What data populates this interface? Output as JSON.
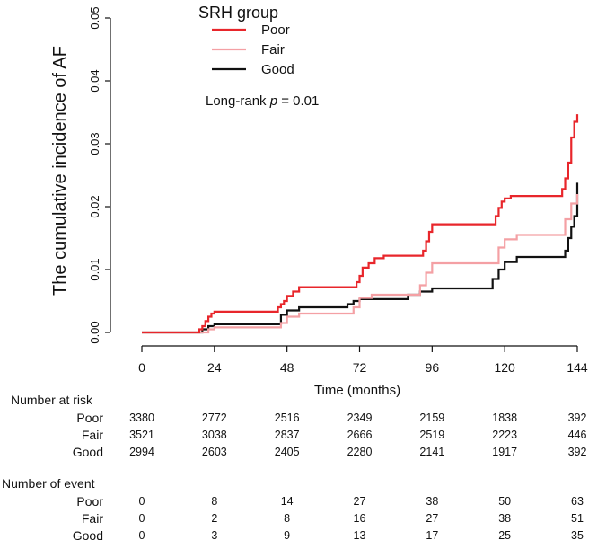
{
  "chart_data": {
    "type": "line",
    "step": true,
    "ylabel": "The cumulative incidence of AF",
    "xlabel": "Time (months)",
    "xlim": [
      0,
      144
    ],
    "ylim": [
      0,
      0.05
    ],
    "x_ticks": [
      0,
      24,
      48,
      72,
      96,
      120,
      144
    ],
    "x_tick_labels": [
      "0",
      "24",
      "48",
      "72",
      "96",
      "120",
      "144"
    ],
    "y_ticks": [
      0,
      0.01,
      0.02,
      0.03,
      0.04,
      0.05
    ],
    "y_tick_labels": [
      "0.00",
      "0.01",
      "0.02",
      "0.03",
      "0.04",
      "0.05"
    ],
    "grid": false,
    "legend": {
      "title": "SRH group",
      "placement": "top-center",
      "entries": [
        "Poor",
        "Fair",
        "Good"
      ]
    },
    "annotation": {
      "prefix": "Long-rank ",
      "italic": "p",
      "suffix": " = 0.01"
    },
    "series": [
      {
        "name": "Poor",
        "color": "#e8262b",
        "points": [
          [
            0,
            0
          ],
          [
            18,
            0
          ],
          [
            19,
            0.0005
          ],
          [
            20,
            0.001
          ],
          [
            21,
            0.0018
          ],
          [
            22,
            0.0025
          ],
          [
            23,
            0.003
          ],
          [
            24,
            0.0033
          ],
          [
            44,
            0.0033
          ],
          [
            45,
            0.004
          ],
          [
            46,
            0.0045
          ],
          [
            47,
            0.005
          ],
          [
            48,
            0.0058
          ],
          [
            50,
            0.0065
          ],
          [
            52,
            0.0072
          ],
          [
            70,
            0.0072
          ],
          [
            71,
            0.008
          ],
          [
            72,
            0.009
          ],
          [
            73,
            0.0103
          ],
          [
            75,
            0.011
          ],
          [
            77,
            0.0118
          ],
          [
            80,
            0.0122
          ],
          [
            92,
            0.0122
          ],
          [
            93,
            0.013
          ],
          [
            94,
            0.0145
          ],
          [
            95,
            0.016
          ],
          [
            96,
            0.0172
          ],
          [
            116,
            0.0172
          ],
          [
            117,
            0.0185
          ],
          [
            118,
            0.0198
          ],
          [
            119,
            0.0208
          ],
          [
            120,
            0.0213
          ],
          [
            122,
            0.0217
          ],
          [
            138,
            0.0217
          ],
          [
            139,
            0.0228
          ],
          [
            140,
            0.0245
          ],
          [
            141,
            0.027
          ],
          [
            142,
            0.031
          ],
          [
            143,
            0.0335
          ],
          [
            144,
            0.0347
          ]
        ]
      },
      {
        "name": "Fair",
        "color": "#f4a0a4",
        "points": [
          [
            0,
            0
          ],
          [
            20,
            0
          ],
          [
            22,
            0.0005
          ],
          [
            24,
            0.0008
          ],
          [
            44,
            0.0008
          ],
          [
            46,
            0.0015
          ],
          [
            48,
            0.0025
          ],
          [
            52,
            0.003
          ],
          [
            68,
            0.003
          ],
          [
            70,
            0.004
          ],
          [
            72,
            0.0055
          ],
          [
            76,
            0.006
          ],
          [
            90,
            0.006
          ],
          [
            92,
            0.0075
          ],
          [
            94,
            0.0095
          ],
          [
            96,
            0.011
          ],
          [
            116,
            0.011
          ],
          [
            118,
            0.0135
          ],
          [
            120,
            0.0148
          ],
          [
            124,
            0.0155
          ],
          [
            138,
            0.0155
          ],
          [
            140,
            0.018
          ],
          [
            142,
            0.0205
          ],
          [
            144,
            0.022
          ]
        ]
      },
      {
        "name": "Good",
        "color": "#111111",
        "points": [
          [
            0,
            0
          ],
          [
            18,
            0
          ],
          [
            20,
            0.0005
          ],
          [
            22,
            0.001
          ],
          [
            24,
            0.0013
          ],
          [
            44,
            0.0013
          ],
          [
            46,
            0.0028
          ],
          [
            48,
            0.0035
          ],
          [
            52,
            0.004
          ],
          [
            66,
            0.004
          ],
          [
            68,
            0.0045
          ],
          [
            70,
            0.005
          ],
          [
            72,
            0.0053
          ],
          [
            86,
            0.0053
          ],
          [
            88,
            0.006
          ],
          [
            92,
            0.0065
          ],
          [
            96,
            0.007
          ],
          [
            114,
            0.007
          ],
          [
            116,
            0.0085
          ],
          [
            118,
            0.01
          ],
          [
            120,
            0.0112
          ],
          [
            124,
            0.012
          ],
          [
            139,
            0.012
          ],
          [
            140,
            0.013
          ],
          [
            141,
            0.015
          ],
          [
            142,
            0.0168
          ],
          [
            143,
            0.0185
          ],
          [
            144,
            0.0238
          ]
        ]
      }
    ]
  },
  "risk_table": {
    "title": "Number at risk",
    "rows": [
      {
        "label": "Poor",
        "values": [
          "3380",
          "2772",
          "2516",
          "2349",
          "2159",
          "1838",
          "392"
        ]
      },
      {
        "label": "Fair",
        "values": [
          "3521",
          "3038",
          "2837",
          "2666",
          "2519",
          "2223",
          "446"
        ]
      },
      {
        "label": "Good",
        "values": [
          "2994",
          "2603",
          "2405",
          "2280",
          "2141",
          "1917",
          "392"
        ]
      }
    ]
  },
  "event_table": {
    "title": "Number of event",
    "rows": [
      {
        "label": "Poor",
        "values": [
          "0",
          "8",
          "14",
          "27",
          "38",
          "50",
          "63"
        ]
      },
      {
        "label": "Fair",
        "values": [
          "0",
          "2",
          "8",
          "16",
          "27",
          "38",
          "51"
        ]
      },
      {
        "label": "Good",
        "values": [
          "0",
          "3",
          "9",
          "13",
          "17",
          "25",
          "35"
        ]
      }
    ]
  }
}
